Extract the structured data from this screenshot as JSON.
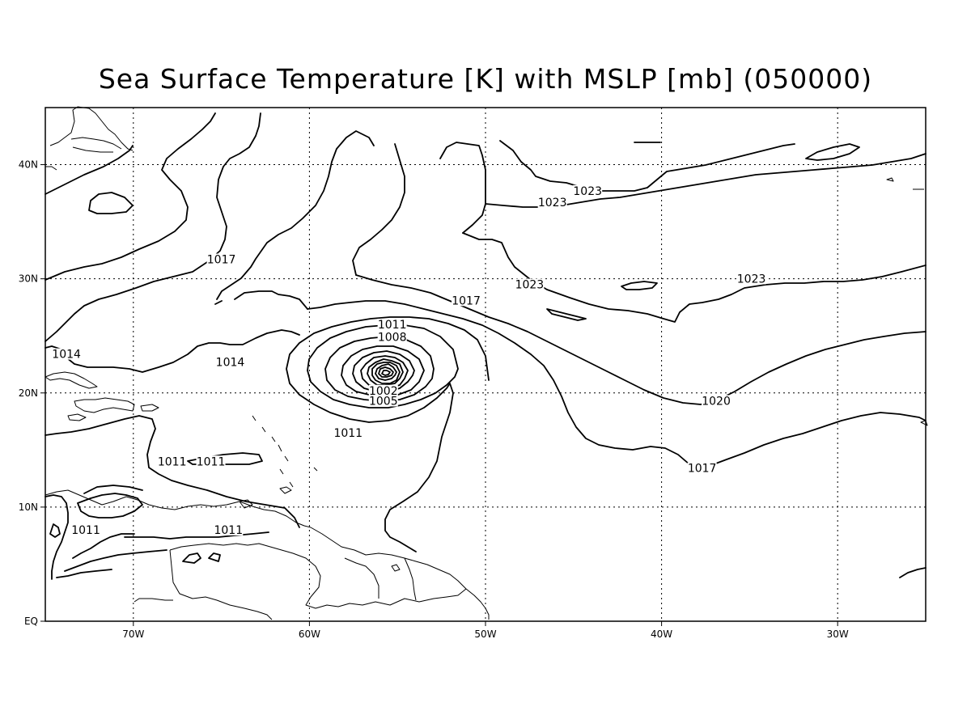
{
  "map": {
    "title": "Sea Surface Temperature [K] with MSLP [mb] (050000)",
    "lon_range": [
      -75,
      -25
    ],
    "lat_range": [
      0,
      45
    ],
    "lon_ticks": [
      {
        "value": -70,
        "label": "70W"
      },
      {
        "value": -60,
        "label": "60W"
      },
      {
        "value": -50,
        "label": "50W"
      },
      {
        "value": -40,
        "label": "40W"
      },
      {
        "value": -30,
        "label": "30W"
      }
    ],
    "lat_ticks": [
      {
        "value": 0,
        "label": "EQ"
      },
      {
        "value": 10,
        "label": "10N"
      },
      {
        "value": 20,
        "label": "20N"
      },
      {
        "value": 30,
        "label": "30N"
      },
      {
        "value": 40,
        "label": "40N"
      }
    ],
    "grid": "dotted",
    "contour_labels": [
      {
        "text": "1023",
        "lon": -44.2,
        "lat": 37.5
      },
      {
        "text": "1023",
        "lon": -46.2,
        "lat": 36.5
      },
      {
        "text": "1023",
        "lon": -47.5,
        "lat": 29.3
      },
      {
        "text": "1023",
        "lon": -34.9,
        "lat": 29.8
      },
      {
        "text": "1017",
        "lon": -65.0,
        "lat": 31.5
      },
      {
        "text": "1017",
        "lon": -51.1,
        "lat": 27.9
      },
      {
        "text": "1014",
        "lon": -73.8,
        "lat": 23.2
      },
      {
        "text": "1014",
        "lon": -64.5,
        "lat": 22.5
      },
      {
        "text": "1011",
        "lon": -55.3,
        "lat": 25.8
      },
      {
        "text": "1008",
        "lon": -55.3,
        "lat": 24.7
      },
      {
        "text": "1020",
        "lon": -36.9,
        "lat": 19.1
      },
      {
        "text": "1017",
        "lon": -37.7,
        "lat": 13.2
      },
      {
        "text": "1011",
        "lon": -57.8,
        "lat": 16.3
      },
      {
        "text": "1005",
        "lon": -55.8,
        "lat": 19.1
      },
      {
        "text": "1002",
        "lon": -55.8,
        "lat": 20.0
      },
      {
        "text": "1011",
        "lon": -67.8,
        "lat": 13.8
      },
      {
        "text": "1011",
        "lon": -65.6,
        "lat": 13.8
      },
      {
        "text": "1011",
        "lon": -72.7,
        "lat": 7.8
      },
      {
        "text": "1011",
        "lon": -64.6,
        "lat": 7.8
      }
    ],
    "low_center": {
      "lon": -55.8,
      "lat": 21.6
    }
  }
}
